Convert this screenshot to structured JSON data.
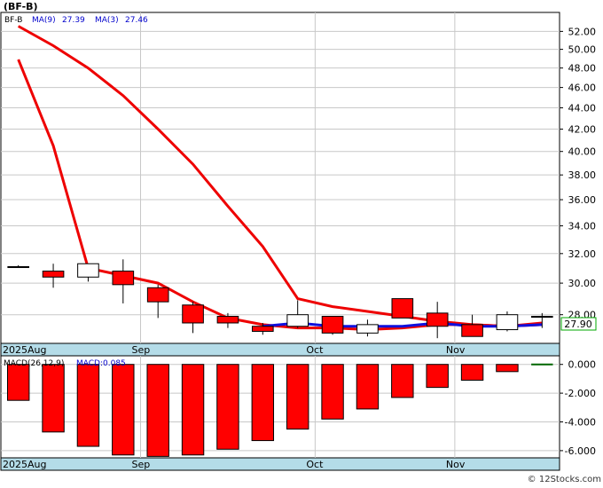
{
  "chart_data": [
    {
      "type": "candlestick",
      "symbol": "(BF-B)",
      "legend": [
        {
          "label": "BF-B",
          "color": "#000000"
        },
        {
          "label": "MA(9)",
          "value": "27.39",
          "color": "#0000cc"
        },
        {
          "label": "MA(3)",
          "value": "27.46",
          "color": "#0000cc"
        }
      ],
      "y_ticks": [
        "52.00",
        "50.00",
        "48.00",
        "46.00",
        "44.00",
        "42.00",
        "40.00",
        "38.00",
        "36.00",
        "34.00",
        "32.00",
        "30.00",
        "28.00"
      ],
      "y_tick_values": [
        52,
        50,
        48,
        46,
        44,
        42,
        40,
        38,
        36,
        34,
        32,
        30,
        28
      ],
      "ylim": [
        26.3,
        54.2
      ],
      "log_scale": true,
      "x_labels": [
        "2025Aug",
        "Sep",
        "Oct",
        "Nov"
      ],
      "x_label_bars": [
        0,
        4,
        9,
        13
      ],
      "last_price": "27.90",
      "colors": {
        "up": "#ffffff",
        "down": "#ff0000",
        "red_ma": "#ee0000",
        "blue_ma": "#1010dd",
        "axis_band": "#b4dce8"
      },
      "candles": [
        {
          "o": 31.1,
          "h": 31.2,
          "l": 31.1,
          "c": 31.1
        },
        {
          "o": 30.8,
          "h": 31.3,
          "l": 29.7,
          "c": 30.4
        },
        {
          "o": 30.4,
          "h": 31.3,
          "l": 30.1,
          "c": 31.3
        },
        {
          "o": 30.8,
          "h": 31.6,
          "l": 28.7,
          "c": 29.9
        },
        {
          "o": 29.7,
          "h": 29.9,
          "l": 27.8,
          "c": 28.8
        },
        {
          "o": 28.6,
          "h": 28.8,
          "l": 26.9,
          "c": 27.5
        },
        {
          "o": 27.9,
          "h": 28.1,
          "l": 27.2,
          "c": 27.5
        },
        {
          "o": 27.3,
          "h": 27.5,
          "l": 26.8,
          "c": 27.0
        },
        {
          "o": 27.3,
          "h": 28.9,
          "l": 27.2,
          "c": 28.0
        },
        {
          "o": 27.9,
          "h": 27.9,
          "l": 26.8,
          "c": 26.9
        },
        {
          "o": 26.9,
          "h": 27.7,
          "l": 26.7,
          "c": 27.4
        },
        {
          "o": 29.0,
          "h": 29.0,
          "l": 27.8,
          "c": 27.8
        },
        {
          "o": 28.1,
          "h": 28.8,
          "l": 26.6,
          "c": 27.3
        },
        {
          "o": 27.4,
          "h": 28.0,
          "l": 26.7,
          "c": 26.7
        },
        {
          "o": 27.1,
          "h": 28.2,
          "l": 27.0,
          "c": 28.0
        },
        {
          "o": 27.9,
          "h": 28.1,
          "l": 27.2,
          "c": 27.9
        }
      ],
      "ma_red_fast": [
        48.9,
        40.5,
        31.0,
        30.5,
        30.0,
        28.8,
        27.8,
        27.4,
        27.2,
        27.2,
        27.1,
        27.2,
        27.4,
        27.4,
        27.3,
        27.5
      ],
      "ma_red_slow": [
        52.6,
        50.4,
        48.0,
        45.2,
        42.0,
        38.9,
        35.5,
        32.5,
        29.0,
        28.5,
        28.2,
        27.9,
        27.6,
        27.4,
        27.3,
        27.4
      ],
      "ma_blue": [
        null,
        null,
        null,
        null,
        null,
        null,
        null,
        27.3,
        27.5,
        27.3,
        27.3,
        27.3,
        27.5,
        27.3,
        27.3,
        27.4
      ]
    },
    {
      "type": "bar",
      "legend": [
        {
          "label": "MACD(26,12,9)",
          "color": "#000000"
        },
        {
          "label": "MACD:0.085",
          "color": "#0000cc"
        }
      ],
      "y_ticks": [
        "0.000",
        "-2.000",
        "-4.000",
        "-6.000"
      ],
      "y_tick_values": [
        0,
        -2,
        -4,
        -6
      ],
      "ylim": [
        -6.5,
        0.6
      ],
      "x_labels": [
        "2025Aug",
        "Sep",
        "Oct",
        "Nov"
      ],
      "values": [
        -2.5,
        -4.7,
        -5.7,
        -6.3,
        -6.4,
        -6.3,
        -5.9,
        -5.3,
        -4.5,
        -3.8,
        -3.1,
        -2.3,
        -1.6,
        -1.1,
        -0.5,
        0.085
      ]
    }
  ],
  "footer": {
    "watermark": "© 12Stocks.com"
  }
}
